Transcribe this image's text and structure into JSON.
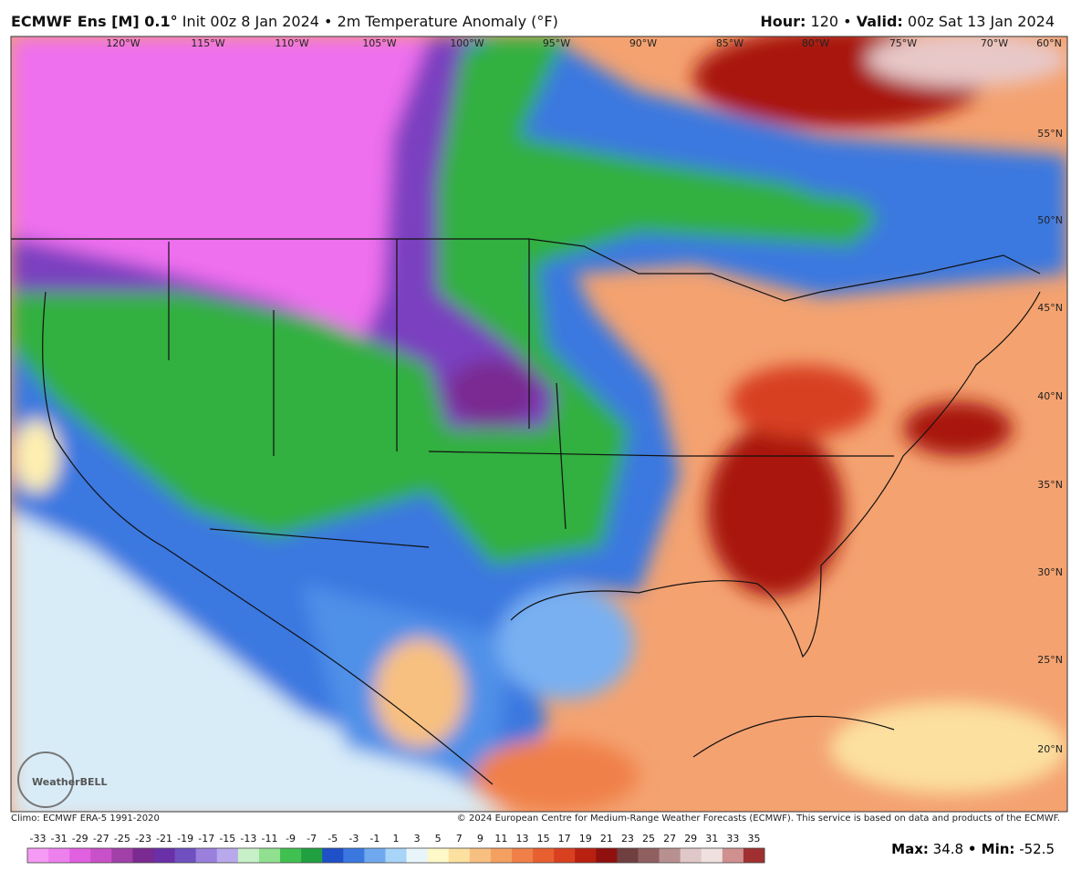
{
  "header": {
    "model": "ECMWF Ens [M] 0.1°",
    "subtitle": "Init 00z 8 Jan 2024 • 2m Temperature Anomaly (°F)",
    "hour_label": "Hour:",
    "hour": "120 •",
    "valid_label": "Valid:",
    "valid": "00z Sat 13 Jan 2024"
  },
  "map": {
    "lon_labels": [
      "120°W",
      "115°W",
      "110°W",
      "105°W",
      "100°W",
      "95°W",
      "90°W",
      "85°W",
      "80°W",
      "75°W",
      "70°W",
      "60°N"
    ],
    "lat_labels": [
      "55°N",
      "50°N",
      "45°N",
      "40°N",
      "35°N",
      "30°N",
      "25°N",
      "20°N"
    ],
    "logo": "WeatherBELL"
  },
  "footer": {
    "climo": "Climo: ECMWF ERA-5 1991-2020",
    "copyright": "© 2024 European Centre for Medium-Range Weather Forecasts (ECMWF). This service is based on data and products of the ECMWF."
  },
  "colorbar": {
    "ticks": [
      -33,
      -31,
      -29,
      -27,
      -25,
      -23,
      -21,
      -19,
      -17,
      -15,
      -13,
      -11,
      -9,
      -7,
      -5,
      -3,
      -1,
      1,
      3,
      5,
      7,
      9,
      11,
      13,
      15,
      17,
      19,
      21,
      23,
      25,
      27,
      29,
      31,
      33,
      35
    ],
    "colors": [
      "#f59af5",
      "#ee80ee",
      "#e060e0",
      "#c850c8",
      "#a040a8",
      "#7a2a90",
      "#6a30a8",
      "#7050c0",
      "#9a80dc",
      "#b8a8ec",
      "#c8f0c8",
      "#90e090",
      "#40c050",
      "#20a040",
      "#2050c8",
      "#3a78e0",
      "#70a8f0",
      "#a8d4f8",
      "#e8f6fc",
      "#fff8c8",
      "#fce0a0",
      "#f8c080",
      "#f4a060",
      "#f08048",
      "#e86030",
      "#d84020",
      "#b82010",
      "#901010",
      "#704040",
      "#906060",
      "#b89090",
      "#e0c8c8",
      "#f0e0e0",
      "#d09090",
      "#a03030"
    ]
  },
  "stats": {
    "max_label": "Max:",
    "max": 34.8,
    "min_label": "• Min:",
    "min": -52.5
  }
}
